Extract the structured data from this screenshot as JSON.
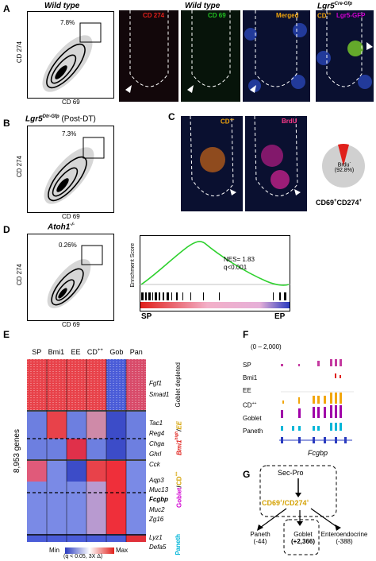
{
  "panels": {
    "A": {
      "label": "A",
      "title": "Wild type",
      "micro_title": "Wild type",
      "flow": {
        "x_label": "CD 69",
        "y_label": "CD 274",
        "percent": "7.8%"
      },
      "micro": [
        "CD 274",
        "CD 69",
        "Merged"
      ],
      "lgr5_title": "Lgr5",
      "lgr5_sup": "Cre-Gfp",
      "lgr5_label_cd": "CD",
      "lgr5_label_cd_sup": "++",
      "lgr5_label_gfp": "Lgr5-GFP"
    },
    "B": {
      "label": "B",
      "title": "Lgr5",
      "title_sup": "Dtr-Gfp",
      "title_suffix": " (Post-DT)",
      "flow": {
        "x_label": "CD 69",
        "y_label": "CD 274",
        "percent": "7.3%"
      }
    },
    "C": {
      "label": "C",
      "micro": [
        {
          "text": "CD",
          "sup": "++"
        },
        {
          "text": "BrdU",
          "sup": ""
        }
      ],
      "pie": {
        "label_line1": "Brdu",
        "label_sup": "-",
        "label_line2": "(92.8%)",
        "caption": "CD69",
        "caption_sup1": "+",
        "caption_mid": "CD274",
        "caption_sup2": "+"
      }
    },
    "D": {
      "label": "D",
      "title": "Atoh1",
      "title_sup": "-/-",
      "flow": {
        "x_label": "CD 69",
        "y_label": "CD 274",
        "percent": "0.26%"
      },
      "gsea": {
        "ylabel": "Enrichment Score",
        "nes": "NES= 1.83",
        "q": "q<0.001",
        "left": "SP",
        "right": "EP"
      }
    },
    "E": {
      "label": "E",
      "columns": [
        "SP",
        "Bmi1",
        "EE",
        "CD",
        "Gob",
        "Pan"
      ],
      "cd_sup": "++",
      "ylabel": "8,953 genes",
      "genes": [
        "Fgf1",
        "Smad1",
        "Tac1",
        "Reg4",
        "Chga",
        "Ghrl",
        "Cck",
        "Aqp3",
        "Muc13",
        "Fcgbp",
        "Muc2",
        "Zg16",
        "Lyz1",
        "Defa5"
      ],
      "groups": {
        "goblet_depleted": "Goblet depleted",
        "bmi": "Bmi1",
        "bmi_sup": "high",
        "ee": "EE",
        "goblet": "Goblet",
        "cd": "CD",
        "cd_sup": "++",
        "paneth": "Paneth"
      },
      "legend": {
        "min": "Min",
        "max": "Max",
        "note": "(q < 0.05, 3X Δ)"
      }
    },
    "F": {
      "label": "F",
      "range": "(0 – 2,000)",
      "tracks": [
        "SP",
        "Bmi1",
        "EE",
        "CD",
        "Goblet",
        "Paneth"
      ],
      "cd_sup": "++",
      "gene": "Fcgbp"
    },
    "G": {
      "label": "G",
      "top": "Sec-Pro",
      "mid1": "CD69",
      "mid1_sup": "+",
      "mid2": "CD274",
      "mid2_sup": "+",
      "outs": [
        {
          "name": "Paneth",
          "count": "(-44)"
        },
        {
          "name": "Goblet",
          "count": "(+2,366)"
        },
        {
          "name": "Enteroendocrine",
          "count": "(-388)"
        }
      ]
    }
  },
  "colors": {
    "red": "#e0201b",
    "green": "#22c022",
    "orange": "#f2a60c",
    "magenta": "#d100d1",
    "cyan": "#00b6d8",
    "blue": "#2a3bbf",
    "gold": "#d4a100"
  }
}
